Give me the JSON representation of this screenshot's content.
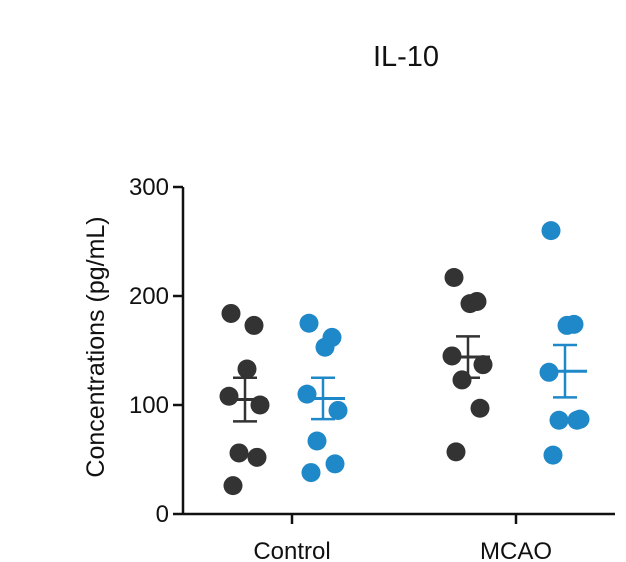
{
  "chart_data": {
    "type": "scatter",
    "title": "IL-10",
    "xlabel": "",
    "ylabel": "Concentrations (pg/mL)",
    "ylim": [
      0,
      300
    ],
    "yticks": [
      0,
      100,
      200,
      300
    ],
    "categories": [
      "Control",
      "MCAO"
    ],
    "colors": {
      "dark": "#333333",
      "blue": "#1E88C8",
      "axis": "#111111"
    },
    "groups": [
      {
        "category": "Control",
        "series": "dark",
        "color": "#333333",
        "mean": 105,
        "sem": 20,
        "values": [
          184,
          173,
          133,
          108,
          100,
          56,
          52,
          26
        ]
      },
      {
        "category": "Control",
        "series": "blue",
        "color": "#1E88C8",
        "mean": 106,
        "sem": 19,
        "values": [
          175,
          162,
          153,
          110,
          95,
          67,
          46,
          38
        ]
      },
      {
        "category": "MCAO",
        "series": "dark",
        "color": "#333333",
        "mean": 144,
        "sem": 19,
        "values": [
          217,
          195,
          193,
          145,
          137,
          123,
          97,
          57
        ]
      },
      {
        "category": "MCAO",
        "series": "blue",
        "color": "#1E88C8",
        "mean": 131,
        "sem": 24,
        "values": [
          260,
          174,
          173,
          130,
          87,
          86,
          86,
          54
        ]
      }
    ]
  }
}
